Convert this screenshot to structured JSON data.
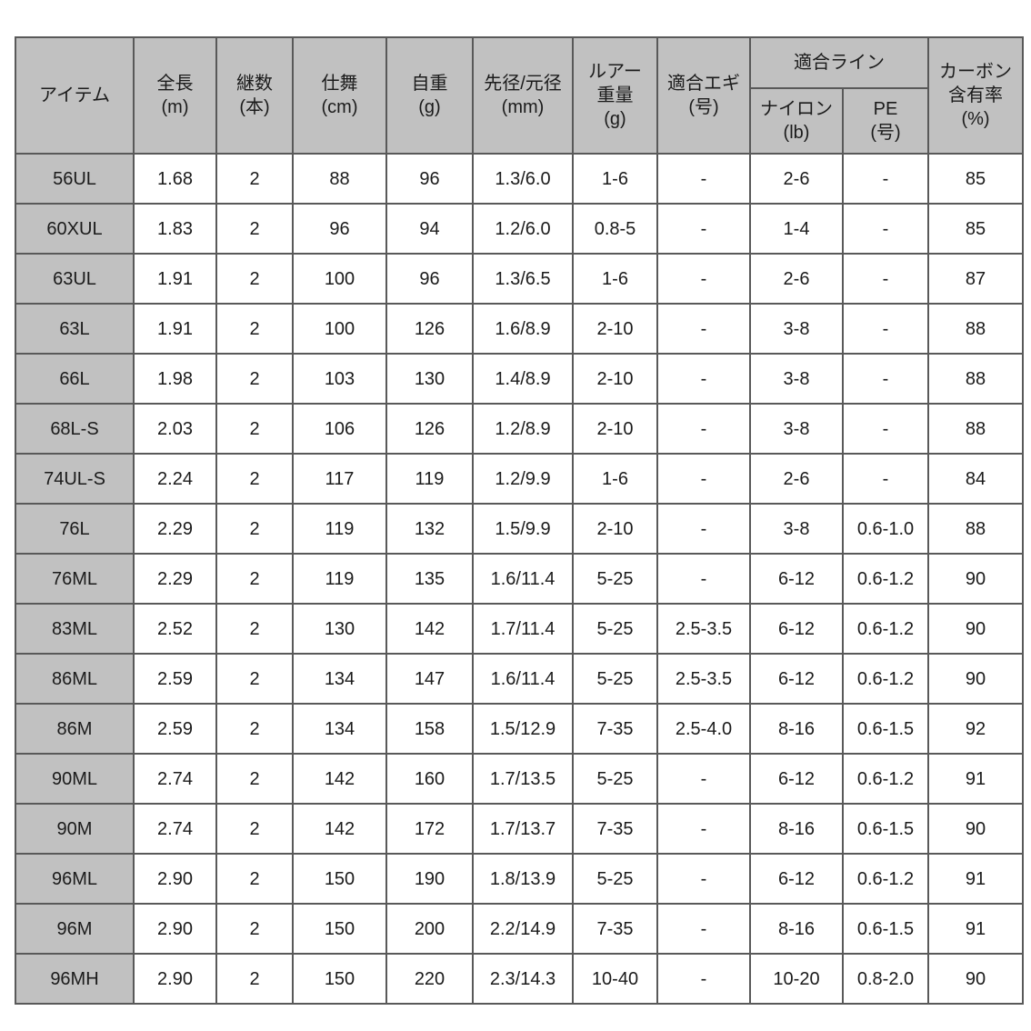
{
  "style": {
    "border_color": "#595959",
    "header_bg": "#c1c1c1",
    "row_header_bg": "#c1c1c1",
    "cell_bg": "#ffffff",
    "text_color": "#1b1b1b",
    "page_bg": "#ffffff"
  },
  "chart_data": {
    "type": "table",
    "headers": {
      "item": "アイテム",
      "total_length": "全長\n(m)",
      "piece_count": "継数\n(本)",
      "closed_length": "仕舞\n(cm)",
      "self_weight": "自重\n(g)",
      "tip_butt_diameter": "先径/元径\n(mm)",
      "lure_weight": "ルアー\n重量\n(g)",
      "egi_size": "適合エギ\n(号)",
      "line_group": "適合ライン",
      "nylon_line": "ナイロン\n(lb)",
      "pe_line": "PE\n(号)",
      "carbon_content": "カーボン\n含有率\n(%)"
    },
    "rows": [
      [
        "56UL",
        "1.68",
        "2",
        "88",
        "96",
        "1.3/6.0",
        "1-6",
        "-",
        "2-6",
        "-",
        "85"
      ],
      [
        "60XUL",
        "1.83",
        "2",
        "96",
        "94",
        "1.2/6.0",
        "0.8-5",
        "-",
        "1-4",
        "-",
        "85"
      ],
      [
        "63UL",
        "1.91",
        "2",
        "100",
        "96",
        "1.3/6.5",
        "1-6",
        "-",
        "2-6",
        "-",
        "87"
      ],
      [
        "63L",
        "1.91",
        "2",
        "100",
        "126",
        "1.6/8.9",
        "2-10",
        "-",
        "3-8",
        "-",
        "88"
      ],
      [
        "66L",
        "1.98",
        "2",
        "103",
        "130",
        "1.4/8.9",
        "2-10",
        "-",
        "3-8",
        "-",
        "88"
      ],
      [
        "68L-S",
        "2.03",
        "2",
        "106",
        "126",
        "1.2/8.9",
        "2-10",
        "-",
        "3-8",
        "-",
        "88"
      ],
      [
        "74UL-S",
        "2.24",
        "2",
        "117",
        "119",
        "1.2/9.9",
        "1-6",
        "-",
        "2-6",
        "-",
        "84"
      ],
      [
        "76L",
        "2.29",
        "2",
        "119",
        "132",
        "1.5/9.9",
        "2-10",
        "-",
        "3-8",
        "0.6-1.0",
        "88"
      ],
      [
        "76ML",
        "2.29",
        "2",
        "119",
        "135",
        "1.6/11.4",
        "5-25",
        "-",
        "6-12",
        "0.6-1.2",
        "90"
      ],
      [
        "83ML",
        "2.52",
        "2",
        "130",
        "142",
        "1.7/11.4",
        "5-25",
        "2.5-3.5",
        "6-12",
        "0.6-1.2",
        "90"
      ],
      [
        "86ML",
        "2.59",
        "2",
        "134",
        "147",
        "1.6/11.4",
        "5-25",
        "2.5-3.5",
        "6-12",
        "0.6-1.2",
        "90"
      ],
      [
        "86M",
        "2.59",
        "2",
        "134",
        "158",
        "1.5/12.9",
        "7-35",
        "2.5-4.0",
        "8-16",
        "0.6-1.5",
        "92"
      ],
      [
        "90ML",
        "2.74",
        "2",
        "142",
        "160",
        "1.7/13.5",
        "5-25",
        "-",
        "6-12",
        "0.6-1.2",
        "91"
      ],
      [
        "90M",
        "2.74",
        "2",
        "142",
        "172",
        "1.7/13.7",
        "7-35",
        "-",
        "8-16",
        "0.6-1.5",
        "90"
      ],
      [
        "96ML",
        "2.90",
        "2",
        "150",
        "190",
        "1.8/13.9",
        "5-25",
        "-",
        "6-12",
        "0.6-1.2",
        "91"
      ],
      [
        "96M",
        "2.90",
        "2",
        "150",
        "200",
        "2.2/14.9",
        "7-35",
        "-",
        "8-16",
        "0.6-1.5",
        "91"
      ],
      [
        "96MH",
        "2.90",
        "2",
        "150",
        "220",
        "2.3/14.3",
        "10-40",
        "-",
        "10-20",
        "0.8-2.0",
        "90"
      ]
    ]
  }
}
